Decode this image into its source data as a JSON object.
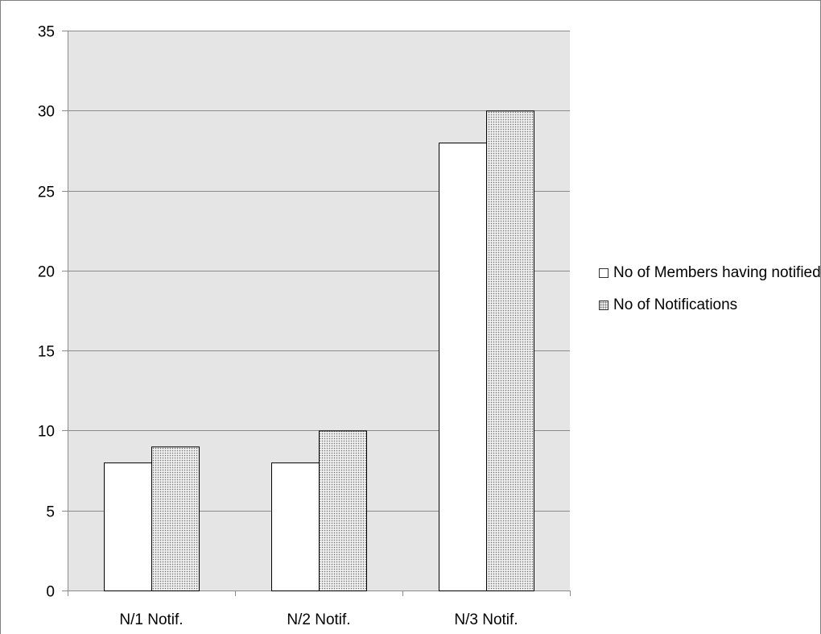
{
  "chart_data": {
    "type": "bar",
    "title": "",
    "xlabel": "",
    "ylabel": "",
    "categories": [
      "N/1 Notif.",
      "N/2 Notif.",
      "N/3 Notif."
    ],
    "series": [
      {
        "name": "No of Members having notified",
        "values": [
          8,
          8,
          28
        ],
        "fill": "white"
      },
      {
        "name": "No of Notifications",
        "values": [
          9,
          10,
          30
        ],
        "fill": "dotted"
      }
    ],
    "ylim": [
      0,
      35
    ],
    "yticks": [
      0,
      5,
      10,
      15,
      20,
      25,
      30,
      35
    ],
    "grid": true,
    "legend_position": "right",
    "plot_background": "#e5e5e5"
  }
}
